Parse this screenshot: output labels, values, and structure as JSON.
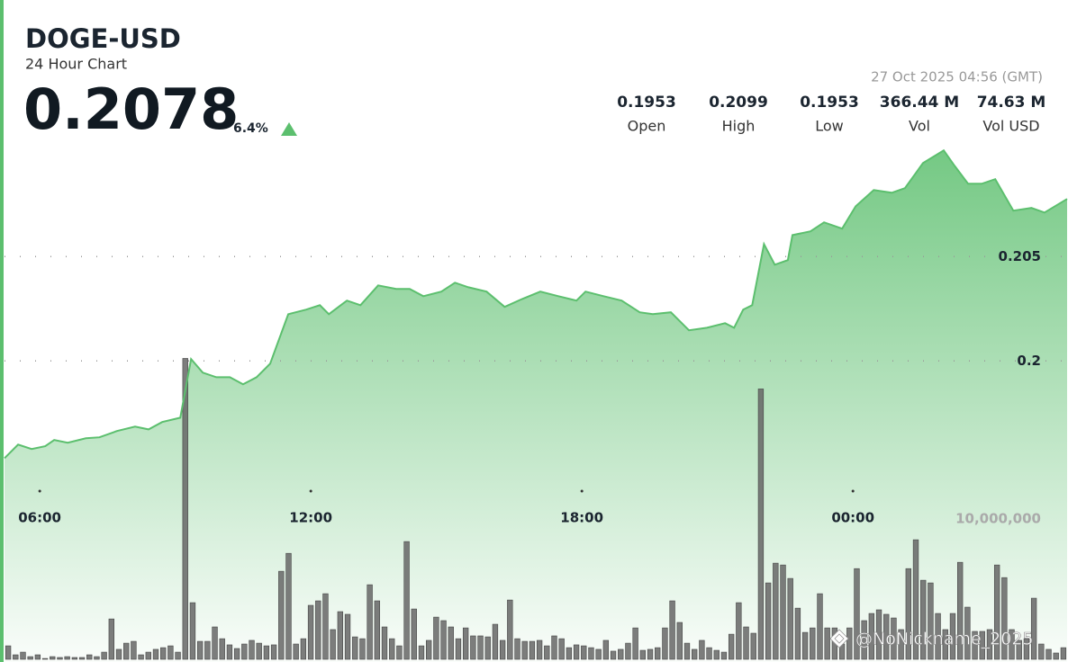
{
  "header": {
    "price": "0.2078",
    "change": "6.4%",
    "timestamp": "27 Oct 2025 04:56 (GMT)",
    "stats": [
      {
        "value": "0.1953",
        "label": "Open"
      },
      {
        "value": "0.2099",
        "label": "High"
      },
      {
        "value": "0.1953",
        "label": "Low"
      },
      {
        "value": "366.44 M",
        "label": "Vol"
      },
      {
        "value": "74.63 M",
        "label": "Vol USD"
      }
    ]
  },
  "watermark": "@NoNickname_2025",
  "chart_data": [
    {
      "type": "line",
      "title": "DOGE-USD",
      "subtitle": "24 Hour Chart",
      "color": "#5cbf6e",
      "x": [
        5.22,
        5.52,
        5.82,
        6.12,
        6.32,
        6.62,
        7.02,
        7.32,
        7.71,
        8.11,
        8.41,
        8.71,
        9.11,
        9.35,
        9.61,
        9.91,
        10.21,
        10.5,
        10.8,
        11.1,
        11.5,
        11.9,
        12.2,
        12.4,
        12.8,
        13.1,
        13.49,
        13.89,
        14.19,
        14.49,
        14.89,
        15.19,
        15.49,
        15.89,
        16.29,
        16.68,
        17.08,
        17.48,
        17.88,
        18.08,
        18.48,
        18.88,
        19.28,
        19.57,
        19.97,
        20.37,
        20.77,
        21.17,
        21.37,
        21.57,
        21.77,
        22.03,
        22.27,
        22.56,
        22.66,
        23.06,
        23.36,
        23.76,
        24.06,
        24.46,
        24.86,
        25.15,
        25.55,
        26.01,
        26.25,
        26.55,
        26.85,
        27.15,
        27.55,
        27.95,
        28.24,
        28.74
      ],
      "values": [
        0.19534,
        0.19599,
        0.19578,
        0.19591,
        0.19621,
        0.19608,
        0.19629,
        0.19634,
        0.19664,
        0.19685,
        0.19672,
        0.19707,
        0.19728,
        0.20009,
        0.19944,
        0.19922,
        0.19922,
        0.19888,
        0.19922,
        0.19987,
        0.20224,
        0.20246,
        0.20267,
        0.20224,
        0.20289,
        0.20267,
        0.20362,
        0.20345,
        0.20345,
        0.2031,
        0.20332,
        0.20375,
        0.20353,
        0.20332,
        0.20259,
        0.20297,
        0.20332,
        0.2031,
        0.20289,
        0.20332,
        0.2031,
        0.20289,
        0.20233,
        0.20224,
        0.20233,
        0.20147,
        0.20159,
        0.20181,
        0.20159,
        0.20246,
        0.20267,
        0.2056,
        0.20461,
        0.20483,
        0.20603,
        0.20621,
        0.20664,
        0.20634,
        0.20741,
        0.20819,
        0.20806,
        0.20828,
        0.20948,
        0.21009,
        0.20935,
        0.20849,
        0.20849,
        0.20871,
        0.2072,
        0.20733,
        0.20711,
        0.20776
      ],
      "xlim": [
        5.22,
        28.74
      ],
      "xticks": [
        {
          "value": 6,
          "label": "06:00"
        },
        {
          "value": 12,
          "label": "12:00"
        },
        {
          "value": 18,
          "label": "18:00"
        },
        {
          "value": 24,
          "label": "00:00"
        }
      ],
      "ylim": [
        0.1857,
        0.2104
      ],
      "yticks": [
        0.2,
        0.205
      ],
      "grid": true
    },
    {
      "type": "bar",
      "color": "#666666",
      "categories": [
        null,
        null,
        null,
        null,
        null,
        null,
        null,
        null,
        null,
        null,
        null,
        null,
        null,
        null,
        null,
        null,
        null,
        null,
        null,
        null,
        null,
        null,
        null,
        null,
        null,
        null,
        null,
        null,
        null,
        null,
        null,
        null,
        null,
        null,
        null,
        null,
        null,
        null,
        null,
        null,
        null,
        null,
        null,
        null,
        null,
        null,
        null,
        null,
        null,
        null,
        null,
        null,
        null,
        null,
        null,
        null,
        null,
        null,
        null,
        null,
        null,
        null,
        null,
        null,
        null,
        null,
        null,
        null,
        null,
        null,
        null,
        null,
        null,
        null,
        null,
        null,
        null,
        null,
        null,
        null,
        null,
        null,
        null,
        null,
        null,
        null,
        null,
        null,
        null,
        null,
        null,
        null,
        null,
        null,
        null,
        null,
        null,
        null,
        null,
        null,
        null,
        null,
        null,
        null,
        null,
        null,
        null,
        null,
        null,
        null,
        null,
        null,
        null,
        null,
        null,
        null,
        null,
        null,
        null,
        null,
        null,
        null,
        null,
        null,
        null,
        null,
        null,
        null,
        null,
        null,
        null,
        null,
        null,
        null,
        null,
        null,
        null,
        null,
        null,
        null,
        null,
        null,
        null,
        null
      ],
      "values": [
        960000,
        320000,
        510000,
        190000,
        320000,
        60000,
        190000,
        130000,
        190000,
        130000,
        130000,
        320000,
        190000,
        510000,
        2880000,
        710000,
        1150000,
        1280000,
        320000,
        510000,
        710000,
        830000,
        960000,
        510000,
        21470000,
        4040000,
        1280000,
        1280000,
        2310000,
        1470000,
        1030000,
        770000,
        1090000,
        1350000,
        1150000,
        960000,
        1030000,
        6280000,
        7560000,
        1090000,
        1470000,
        3850000,
        4170000,
        4680000,
        2120000,
        3400000,
        3210000,
        1600000,
        1470000,
        5320000,
        4170000,
        2310000,
        1470000,
        960000,
        8400000,
        3590000,
        960000,
        1350000,
        3010000,
        2760000,
        2310000,
        1470000,
        2240000,
        1670000,
        1670000,
        1600000,
        2500000,
        1350000,
        4230000,
        1470000,
        1280000,
        1280000,
        1350000,
        960000,
        1670000,
        1470000,
        830000,
        1030000,
        960000,
        830000,
        710000,
        1350000,
        580000,
        710000,
        1150000,
        2240000,
        640000,
        710000,
        830000,
        2240000,
        4170000,
        2630000,
        1150000,
        710000,
        1350000,
        830000,
        640000,
        510000,
        1790000,
        4040000,
        2310000,
        1860000,
        19290000,
        5450000,
        6860000,
        6730000,
        5770000,
        3650000,
        1920000,
        2240000,
        4680000,
        2240000,
        2240000,
        1090000,
        2240000,
        6470000,
        2760000,
        3270000,
        3530000,
        3210000,
        2950000,
        2120000,
        6470000,
        8530000,
        5640000,
        5450000,
        3270000,
        2120000,
        3270000,
        6920000,
        3720000,
        1990000,
        1990000,
        2120000,
        6730000,
        5830000,
        2120000,
        1350000,
        1470000,
        4360000,
        1090000,
        710000,
        450000,
        830000
      ],
      "ylim": [
        0,
        21500000
      ],
      "yticks": [
        {
          "value": 10000000,
          "label": "10,000,000"
        }
      ]
    }
  ]
}
